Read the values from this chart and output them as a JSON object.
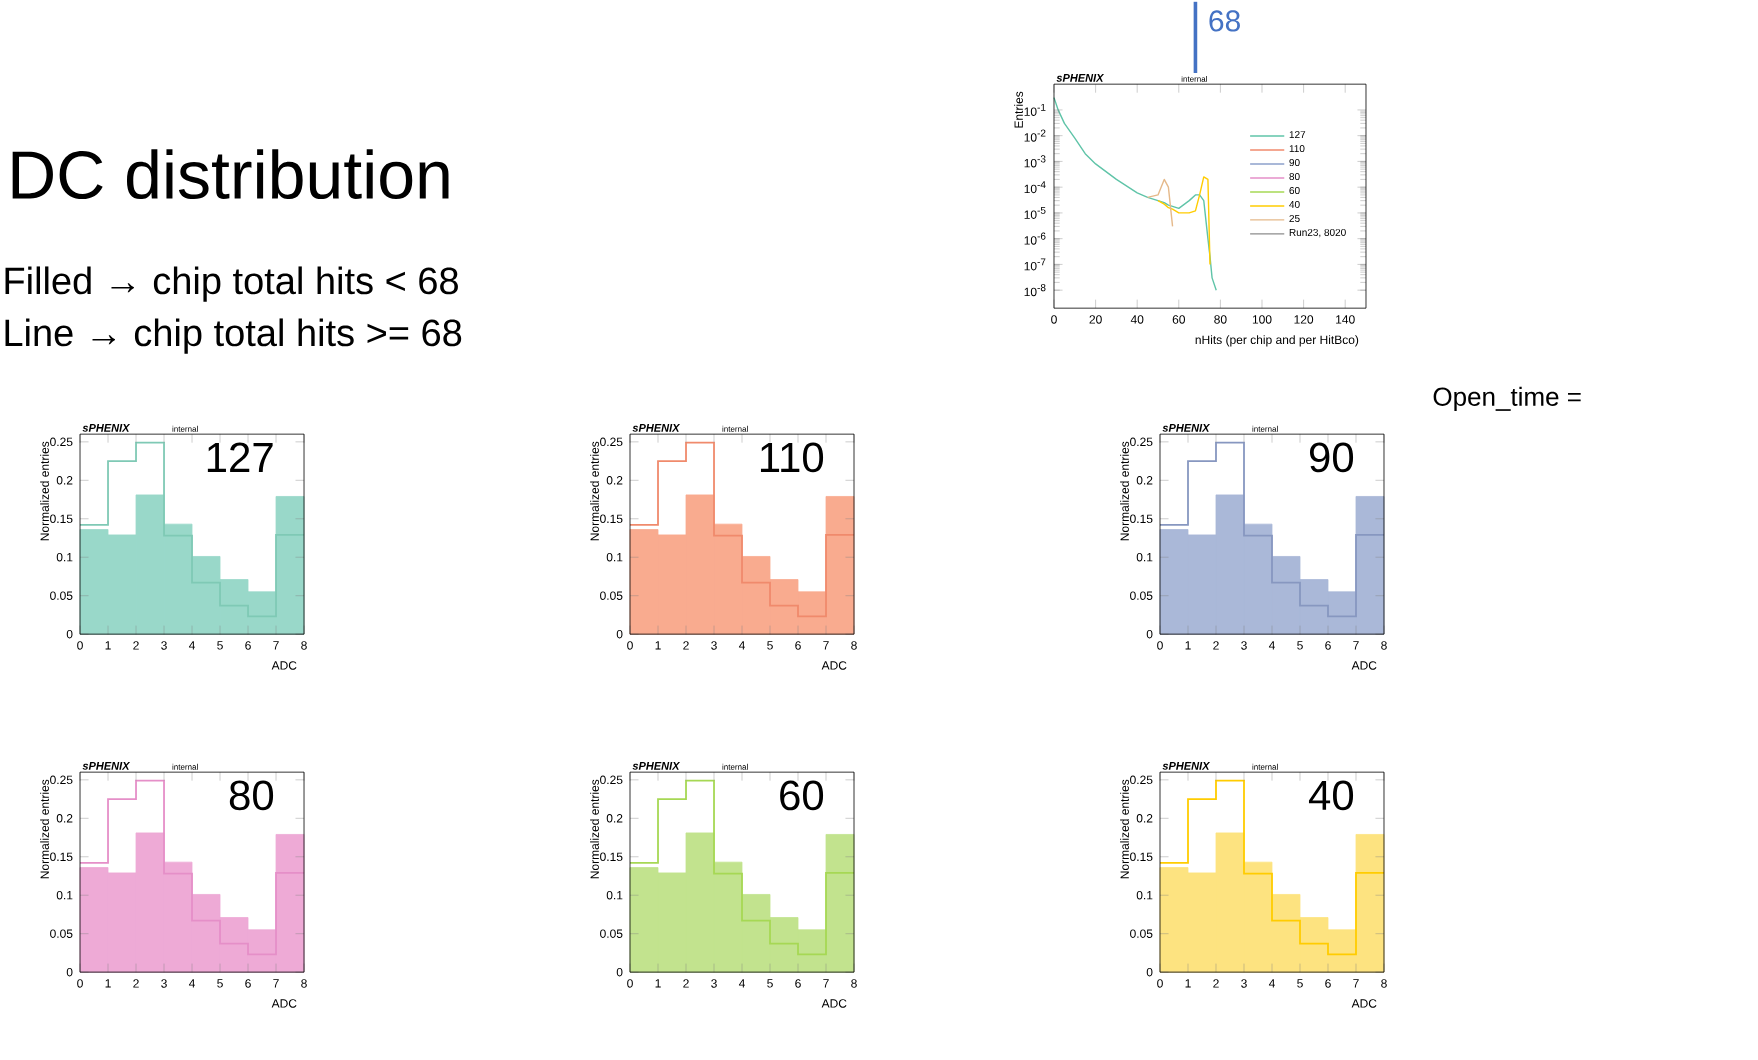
{
  "chart_data": [
    {
      "type": "line",
      "xlabel": "nHits (per chip and per HitBco)",
      "ylabel": "Entries",
      "log": "y",
      "legend": "right",
      "xlim": [
        0,
        150
      ],
      "xticks": [
        0,
        20,
        40,
        60,
        80,
        100,
        120,
        140
      ],
      "ylim": [
        2e-09,
        1
      ],
      "yticks": [
        {
          "value": 1e-08,
          "label": "10$^{-8}$"
        },
        {
          "value": 1e-07,
          "label": "10$^{-7}$"
        },
        {
          "value": 1e-06,
          "label": "10$^{-6}$"
        },
        {
          "value": 1e-05,
          "label": "10$^{-5}$"
        },
        {
          "value": 0.0001,
          "label": "10$^{-4}$"
        },
        {
          "value": 0.001,
          "label": "10$^{-3}$"
        },
        {
          "value": 0.01,
          "label": "10$^{-2}$"
        },
        {
          "value": 0.1,
          "label": "10$^{-1}$"
        }
      ],
      "x": [
        0,
        2,
        5,
        10,
        15,
        20,
        30,
        40,
        45,
        50,
        53,
        55,
        57,
        60,
        65,
        68,
        70,
        72,
        74,
        75,
        76,
        78
      ],
      "series": [
        {
          "name": "127",
          "color": "#5fc4a8",
          "values": [
            0.3,
            0.1,
            0.03,
            0.008,
            0.002,
            0.0008,
            0.0002,
            6e-05,
            4e-05,
            3e-05,
            2.5e-05,
            2e-05,
            1.8e-05,
            1.5e-05,
            3e-05,
            5e-05,
            5e-05,
            3e-05,
            1e-06,
            2e-07,
            3e-08,
            1e-08
          ]
        },
        {
          "name": "110",
          "color": "#f08a6c",
          "values": [
            null,
            null,
            null,
            null,
            null,
            null,
            null,
            null,
            null,
            null,
            null,
            null,
            null,
            null,
            null,
            null,
            null,
            null,
            null,
            null,
            null,
            null
          ]
        },
        {
          "name": "90",
          "color": "#8da0cb",
          "values": [
            null,
            null,
            null,
            null,
            null,
            null,
            null,
            null,
            null,
            null,
            null,
            null,
            null,
            null,
            null,
            null,
            null,
            null,
            null,
            null,
            null,
            null
          ]
        },
        {
          "name": "80",
          "color": "#e58fc8",
          "values": [
            null,
            null,
            null,
            null,
            null,
            null,
            null,
            null,
            null,
            null,
            null,
            null,
            null,
            null,
            null,
            null,
            null,
            null,
            null,
            null,
            null,
            null
          ]
        },
        {
          "name": "60",
          "color": "#a6d854",
          "values": [
            null,
            null,
            null,
            null,
            null,
            null,
            null,
            null,
            null,
            null,
            null,
            null,
            null,
            null,
            null,
            null,
            null,
            null,
            null,
            null,
            null,
            null
          ]
        },
        {
          "name": "40",
          "color": "#ffcc00",
          "values": [
            null,
            null,
            null,
            null,
            null,
            null,
            null,
            null,
            null,
            3e-05,
            2.2e-05,
            1.6e-05,
            1.4e-05,
            1e-05,
            1e-05,
            1.2e-05,
            5e-05,
            0.00025,
            0.0002,
            1e-07,
            null,
            null
          ]
        },
        {
          "name": "25",
          "color": "#e5b98a",
          "values": [
            null,
            null,
            null,
            null,
            null,
            null,
            null,
            null,
            4e-05,
            5e-05,
            0.0002,
            0.0001,
            3e-06,
            null,
            null,
            null,
            null,
            null,
            null,
            null,
            null,
            null
          ]
        },
        {
          "name": "Run23, 8020",
          "color": "#8c8c8c",
          "values": [
            null,
            null,
            null,
            null,
            null,
            null,
            null,
            null,
            null,
            null,
            null,
            null,
            null,
            null,
            null,
            null,
            null,
            null,
            null,
            null,
            null,
            null
          ]
        }
      ],
      "ref_lines": [
        {
          "axis": "x",
          "value": 68,
          "label": "68",
          "color": "#4472c4"
        }
      ],
      "annotations": [
        "sPHENIX",
        "internal",
        "DC distribution",
        "Filled → chip total hits < 68",
        "Line → chip total hits >= 68"
      ]
    },
    {
      "type": "histogram",
      "xlabel": "ADC",
      "ylabel": "Normalized entries",
      "bins": [
        0,
        1,
        2,
        3,
        4,
        5,
        6,
        7,
        8
      ],
      "xlim": [
        0,
        8
      ],
      "xticks": [
        0,
        1,
        2,
        3,
        4,
        5,
        6,
        7,
        8
      ],
      "ylim": [
        0,
        0.26
      ],
      "yticks": [
        0,
        0.05,
        0.1,
        0.15,
        0.2,
        0.25
      ],
      "series": [
        {
          "color": "#99d8c9",
          "values": [
            0.136,
            0.129,
            0.181,
            0.143,
            0.101,
            0.071,
            0.055,
            0.179
          ]
        },
        {
          "type": "step",
          "x": [
            0,
            1,
            2,
            3,
            4,
            5,
            6,
            7,
            8
          ],
          "color": "#7fc9b5",
          "values": [
            0.142,
            0.225,
            0.249,
            0.128,
            0.067,
            0.037,
            0.023,
            0.129,
            0.129
          ]
        }
      ],
      "annotations": [
        "sPHENIX",
        "internal",
        "127"
      ]
    },
    {
      "type": "histogram",
      "xlabel": "ADC",
      "ylabel": "Normalized entries",
      "bins": [
        0,
        1,
        2,
        3,
        4,
        5,
        6,
        7,
        8
      ],
      "xlim": [
        0,
        8
      ],
      "xticks": [
        0,
        1,
        2,
        3,
        4,
        5,
        6,
        7,
        8
      ],
      "ylim": [
        0,
        0.26
      ],
      "yticks": [
        0,
        0.05,
        0.1,
        0.15,
        0.2,
        0.25
      ],
      "series": [
        {
          "color": "#f9ab8f",
          "values": [
            0.136,
            0.129,
            0.181,
            0.143,
            0.101,
            0.071,
            0.055,
            0.179
          ]
        },
        {
          "type": "step",
          "x": [
            0,
            1,
            2,
            3,
            4,
            5,
            6,
            7,
            8
          ],
          "color": "#f08a6c",
          "values": [
            0.142,
            0.225,
            0.249,
            0.128,
            0.067,
            0.037,
            0.023,
            0.129,
            0.129
          ]
        }
      ],
      "annotations": [
        "sPHENIX",
        "internal",
        "110"
      ]
    },
    {
      "type": "histogram",
      "xlabel": "ADC",
      "ylabel": "Normalized entries",
      "bins": [
        0,
        1,
        2,
        3,
        4,
        5,
        6,
        7,
        8
      ],
      "xlim": [
        0,
        8
      ],
      "xticks": [
        0,
        1,
        2,
        3,
        4,
        5,
        6,
        7,
        8
      ],
      "ylim": [
        0,
        0.26
      ],
      "yticks": [
        0,
        0.05,
        0.1,
        0.15,
        0.2,
        0.25
      ],
      "series": [
        {
          "color": "#aab8d8",
          "values": [
            0.136,
            0.129,
            0.181,
            0.143,
            0.101,
            0.071,
            0.055,
            0.179
          ]
        },
        {
          "type": "step",
          "x": [
            0,
            1,
            2,
            3,
            4,
            5,
            6,
            7,
            8
          ],
          "color": "#8797c0",
          "values": [
            0.142,
            0.225,
            0.249,
            0.128,
            0.067,
            0.037,
            0.023,
            0.129,
            0.129
          ]
        }
      ],
      "annotations": [
        "sPHENIX",
        "internal",
        "90",
        "Open_time ="
      ]
    },
    {
      "type": "histogram",
      "xlabel": "ADC",
      "ylabel": "Normalized entries",
      "bins": [
        0,
        1,
        2,
        3,
        4,
        5,
        6,
        7,
        8
      ],
      "xlim": [
        0,
        8
      ],
      "xticks": [
        0,
        1,
        2,
        3,
        4,
        5,
        6,
        7,
        8
      ],
      "ylim": [
        0,
        0.26
      ],
      "yticks": [
        0,
        0.05,
        0.1,
        0.15,
        0.2,
        0.25
      ],
      "series": [
        {
          "color": "#eeaad6",
          "values": [
            0.136,
            0.129,
            0.181,
            0.143,
            0.101,
            0.071,
            0.055,
            0.179
          ]
        },
        {
          "type": "step",
          "x": [
            0,
            1,
            2,
            3,
            4,
            5,
            6,
            7,
            8
          ],
          "color": "#e58fc8",
          "values": [
            0.142,
            0.225,
            0.249,
            0.128,
            0.067,
            0.037,
            0.023,
            0.129,
            0.129
          ]
        }
      ],
      "annotations": [
        "sPHENIX",
        "internal",
        "80"
      ]
    },
    {
      "type": "histogram",
      "xlabel": "ADC",
      "ylabel": "Normalized entries",
      "bins": [
        0,
        1,
        2,
        3,
        4,
        5,
        6,
        7,
        8
      ],
      "xlim": [
        0,
        8
      ],
      "xticks": [
        0,
        1,
        2,
        3,
        4,
        5,
        6,
        7,
        8
      ],
      "ylim": [
        0,
        0.26
      ],
      "yticks": [
        0,
        0.05,
        0.1,
        0.15,
        0.2,
        0.25
      ],
      "series": [
        {
          "color": "#c2e38e",
          "values": [
            0.136,
            0.129,
            0.181,
            0.143,
            0.101,
            0.071,
            0.055,
            0.179
          ]
        },
        {
          "type": "step",
          "x": [
            0,
            1,
            2,
            3,
            4,
            5,
            6,
            7,
            8
          ],
          "color": "#a6d854",
          "values": [
            0.142,
            0.225,
            0.249,
            0.128,
            0.067,
            0.037,
            0.023,
            0.129,
            0.129
          ]
        }
      ],
      "annotations": [
        "sPHENIX",
        "internal",
        "60"
      ]
    },
    {
      "type": "histogram",
      "xlabel": "ADC",
      "ylabel": "Normalized entries",
      "bins": [
        0,
        1,
        2,
        3,
        4,
        5,
        6,
        7,
        8
      ],
      "xlim": [
        0,
        8
      ],
      "xticks": [
        0,
        1,
        2,
        3,
        4,
        5,
        6,
        7,
        8
      ],
      "ylim": [
        0,
        0.26
      ],
      "yticks": [
        0,
        0.05,
        0.1,
        0.15,
        0.2,
        0.25
      ],
      "series": [
        {
          "color": "#fde380",
          "values": [
            0.136,
            0.129,
            0.181,
            0.143,
            0.101,
            0.071,
            0.055,
            0.179
          ]
        },
        {
          "type": "step",
          "x": [
            0,
            1,
            2,
            3,
            4,
            5,
            6,
            7,
            8
          ],
          "color": "#ffcc00",
          "values": [
            0.142,
            0.225,
            0.249,
            0.128,
            0.067,
            0.037,
            0.023,
            0.129,
            0.129
          ]
        }
      ],
      "annotations": [
        "sPHENIX",
        "internal",
        "40"
      ]
    }
  ]
}
